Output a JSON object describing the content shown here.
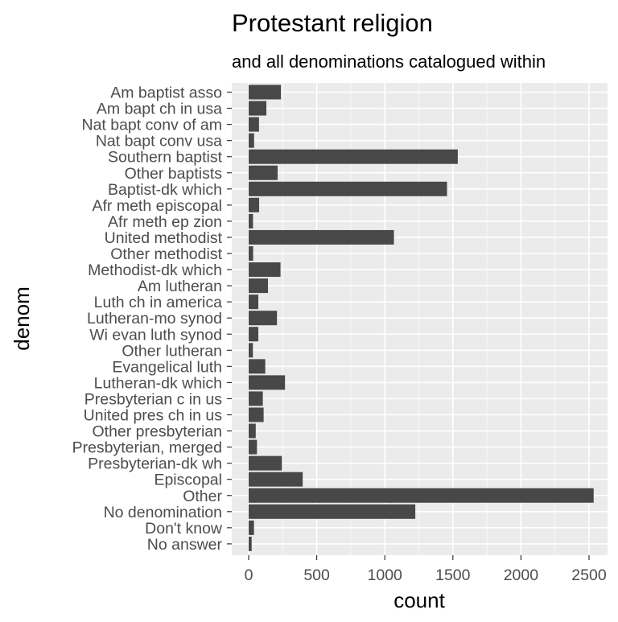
{
  "chart_data": {
    "type": "bar",
    "orientation": "horizontal",
    "title": "Protestant religion",
    "subtitle": "and all denominations catalogued within",
    "xlabel": "count",
    "ylabel": "denom",
    "xlim": [
      0,
      2550
    ],
    "xticks": [
      0,
      500,
      1000,
      1500,
      2000,
      2500
    ],
    "xtick_labels": [
      "0",
      "500",
      "1000",
      "1500",
      "2000",
      "2500"
    ],
    "categories": [
      "Am baptist asso",
      "Am bapt ch in usa",
      "Nat bapt conv of am",
      "Nat bapt conv usa",
      "Southern baptist",
      "Other baptists",
      "Baptist-dk which",
      "Afr meth episcopal",
      "Afr meth ep zion",
      "United methodist",
      "Other methodist",
      "Methodist-dk which",
      "Am lutheran",
      "Luth ch in america",
      "Lutheran-mo synod",
      "Wi evan luth synod",
      "Other lutheran",
      "Evangelical luth",
      "Lutheran-dk which",
      "Presbyterian c in us",
      "United pres ch in us",
      "Other presbyterian",
      "Presbyterian, merged",
      "Presbyterian-dk wh",
      "Episcopal",
      "Other",
      "No denomination",
      "Don't know",
      "No answer"
    ],
    "values": [
      237,
      130,
      76,
      40,
      1536,
      213,
      1457,
      77,
      32,
      1067,
      33,
      234,
      142,
      71,
      208,
      71,
      31,
      122,
      267,
      104,
      110,
      52,
      61,
      244,
      397,
      2534,
      1224,
      39,
      22
    ],
    "colors": {
      "bar": "#484848",
      "panel": "#ebebeb",
      "grid_major": "#ffffff",
      "text": "#4d4d4d",
      "title": "#000000"
    },
    "grid": true
  }
}
